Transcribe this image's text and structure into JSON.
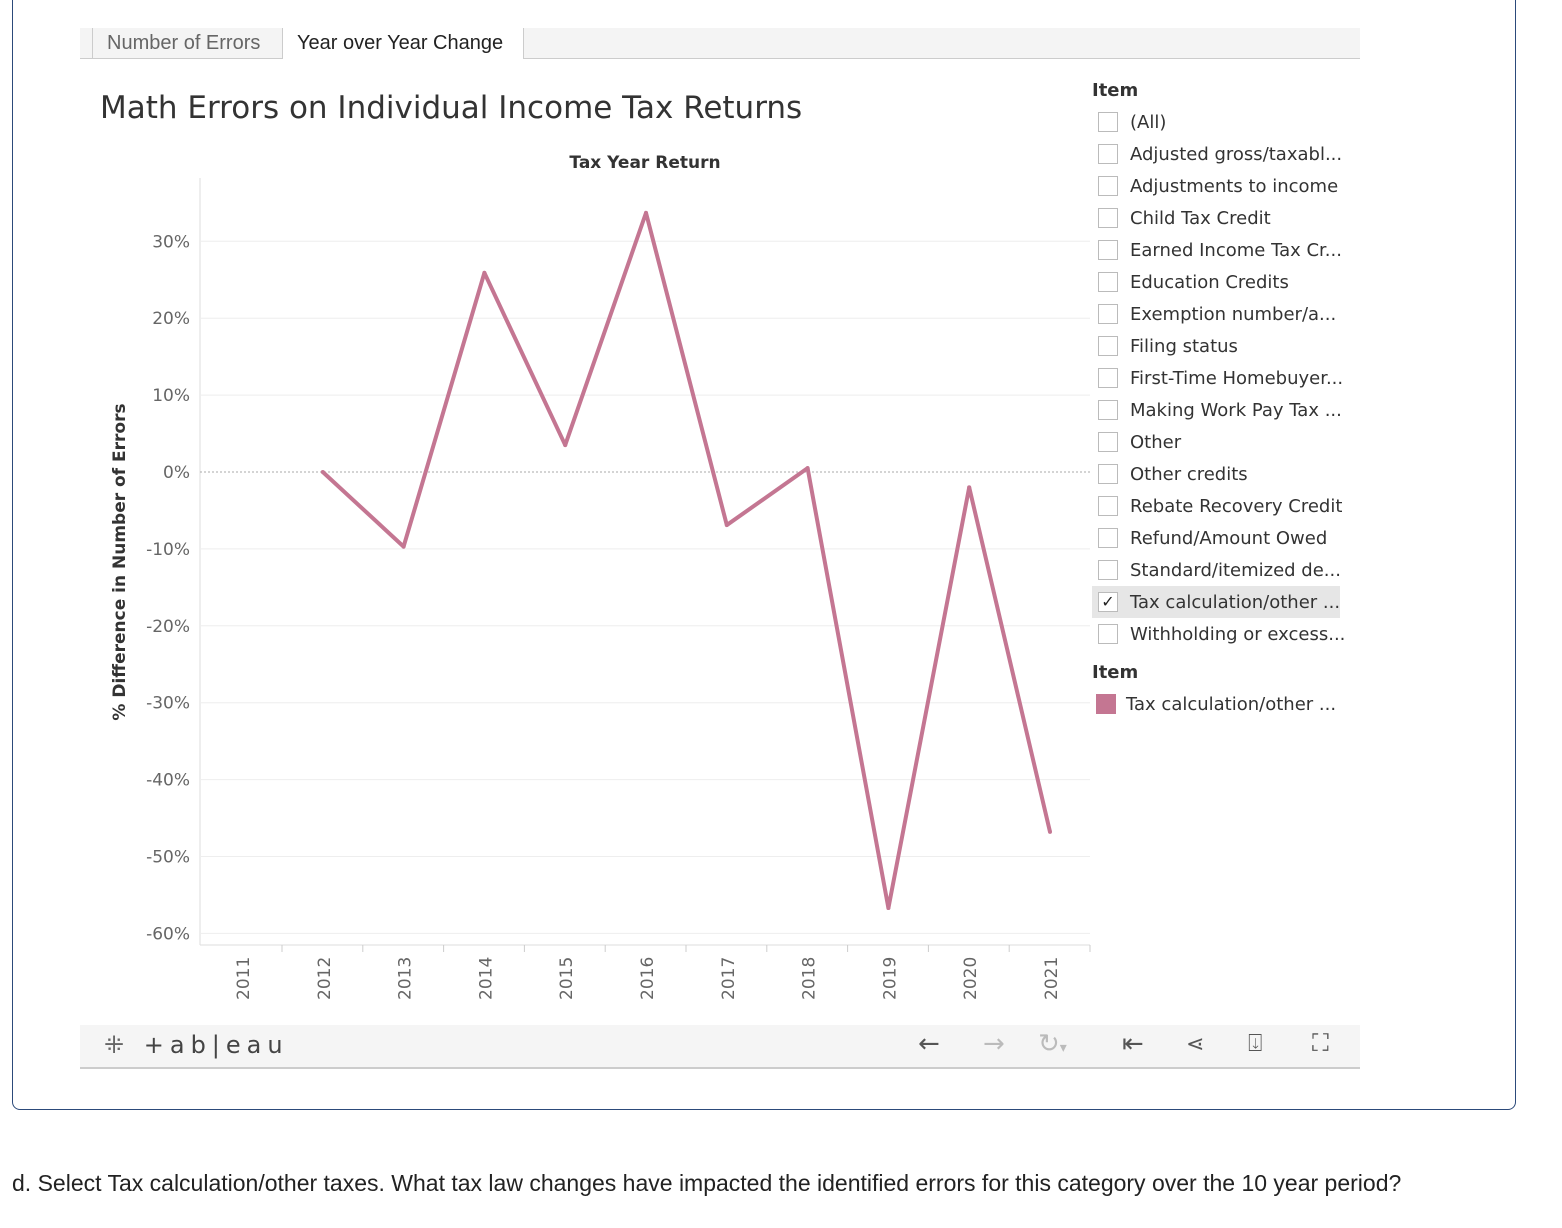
{
  "tabs": [
    {
      "label": "Number of Errors",
      "active": false
    },
    {
      "label": "Year over Year Change",
      "active": true
    }
  ],
  "chart_data": {
    "type": "line",
    "title": "Math Errors on Individual Income Tax Returns",
    "xlabel": "Tax Year Return",
    "ylabel": "% Difference in Number of Errors",
    "x": [
      2011,
      2012,
      2013,
      2014,
      2015,
      2016,
      2017,
      2018,
      2019,
      2020,
      2021
    ],
    "x_ticks": [
      "2011",
      "2012",
      "2013",
      "2014",
      "2015",
      "2016",
      "2017",
      "2018",
      "2019",
      "2020",
      "2021"
    ],
    "y_ticks": [
      "30%",
      "20%",
      "10%",
      "0%",
      "-10%",
      "-20%",
      "-30%",
      "-40%",
      "-50%",
      "-60%"
    ],
    "ylim": [
      -62,
      37
    ],
    "grid": true,
    "series": [
      {
        "name": "Tax calculation/other ...",
        "color": "#c47692",
        "values": [
          null,
          0,
          -9.7,
          25.9,
          3.5,
          33.7,
          -6.9,
          0.5,
          -56.7,
          -2.0,
          -46.8
        ]
      }
    ]
  },
  "filter": {
    "header": "Item",
    "items": [
      {
        "label": "(All)",
        "checked": false
      },
      {
        "label": "Adjusted gross/taxabl...",
        "checked": false
      },
      {
        "label": "Adjustments to income",
        "checked": false
      },
      {
        "label": "Child Tax Credit",
        "checked": false
      },
      {
        "label": "Earned Income Tax Cr...",
        "checked": false
      },
      {
        "label": "Education Credits",
        "checked": false
      },
      {
        "label": "Exemption number/a...",
        "checked": false
      },
      {
        "label": "Filing status",
        "checked": false
      },
      {
        "label": "First-Time Homebuyer...",
        "checked": false
      },
      {
        "label": "Making Work Pay Tax ...",
        "checked": false
      },
      {
        "label": "Other",
        "checked": false
      },
      {
        "label": "Other credits",
        "checked": false
      },
      {
        "label": "Rebate Recovery Credit",
        "checked": false
      },
      {
        "label": "Refund/Amount Owed",
        "checked": false
      },
      {
        "label": "Standard/itemized de...",
        "checked": false
      },
      {
        "label": "Tax calculation/other ...",
        "checked": true
      },
      {
        "label": "Withholding or excess...",
        "checked": false
      }
    ]
  },
  "legend": {
    "header": "Item",
    "items": [
      {
        "label": "Tax calculation/other ...",
        "color": "#c47692"
      }
    ]
  },
  "toolbar": {
    "logo": "+ab|eau",
    "icons": [
      "undo-icon",
      "redo-icon",
      "revert-icon",
      "reset-icon",
      "share-icon",
      "download-icon",
      "fullscreen-icon"
    ]
  },
  "question": "d. Select Tax calculation/other taxes. What tax law changes have impacted the identified errors for this category over the 10 year period?"
}
